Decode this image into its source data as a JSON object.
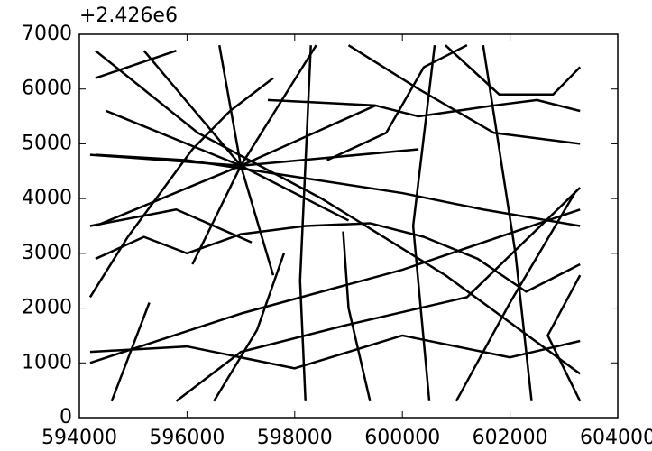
{
  "chart_data": {
    "type": "line",
    "offset_text": "+2.426e6",
    "xlim": [
      594000,
      604000
    ],
    "xticks": [
      594000,
      596000,
      598000,
      600000,
      602000,
      604000
    ],
    "ylim": [
      0,
      7000
    ],
    "yticks": [
      0,
      1000,
      2000,
      3000,
      4000,
      5000,
      6000,
      7000
    ],
    "series": [
      {
        "color": "#000000",
        "x": [
          597000,
          594200
        ],
        "values": [
          4600,
          4800
        ]
      },
      {
        "color": "#000000",
        "x": [
          597000,
          594300
        ],
        "values": [
          4600,
          3500
        ]
      },
      {
        "color": "#000000",
        "x": [
          597000,
          595200
        ],
        "values": [
          4600,
          6700
        ]
      },
      {
        "color": "#000000",
        "x": [
          597000,
          596600
        ],
        "values": [
          4600,
          6800
        ]
      },
      {
        "color": "#000000",
        "x": [
          597000,
          598400
        ],
        "values": [
          4600,
          6800
        ]
      },
      {
        "color": "#000000",
        "x": [
          597000,
          599500
        ],
        "values": [
          4600,
          5700
        ]
      },
      {
        "color": "#000000",
        "x": [
          597000,
          600300
        ],
        "values": [
          4600,
          4900
        ]
      },
      {
        "color": "#000000",
        "x": [
          597000,
          599000
        ],
        "values": [
          4600,
          3600
        ]
      },
      {
        "color": "#000000",
        "x": [
          597000,
          597600
        ],
        "values": [
          4600,
          2600
        ]
      },
      {
        "color": "#000000",
        "x": [
          597000,
          596100
        ],
        "values": [
          4600,
          2800
        ]
      },
      {
        "color": "#000000",
        "x": [
          597000,
          594500
        ],
        "values": [
          4600,
          5600
        ]
      },
      {
        "color": "#000000",
        "x": [
          594200,
          594900,
          595500,
          596100,
          596800,
          597600
        ],
        "values": [
          2200,
          3300,
          4100,
          4900,
          5600,
          6200
        ]
      },
      {
        "color": "#000000",
        "x": [
          594300,
          595200,
          596000,
          597000,
          598200,
          599400,
          600400,
          601400,
          602300,
          603300
        ],
        "values": [
          2900,
          3300,
          3000,
          3350,
          3500,
          3550,
          3300,
          2900,
          2300,
          2800
        ]
      },
      {
        "color": "#000000",
        "x": [
          594300,
          596000,
          598000,
          600000,
          601500,
          603300
        ],
        "values": [
          4800,
          4700,
          4400,
          4100,
          3800,
          3500
        ]
      },
      {
        "color": "#000000",
        "x": [
          597500,
          599500,
          600300,
          601700,
          602500,
          603300
        ],
        "values": [
          5800,
          5700,
          5500,
          5700,
          5800,
          5600
        ]
      },
      {
        "color": "#000000",
        "x": [
          598200,
          598100,
          598300
        ],
        "values": [
          300,
          2500,
          6800
        ]
      },
      {
        "color": "#000000",
        "x": [
          600500,
          600200,
          600600
        ],
        "values": [
          300,
          3500,
          6800
        ]
      },
      {
        "color": "#000000",
        "x": [
          602400,
          602100,
          601500
        ],
        "values": [
          300,
          3000,
          6800
        ]
      },
      {
        "color": "#000000",
        "x": [
          594300,
          596200,
          598500,
          600800,
          603300
        ],
        "values": [
          6700,
          5200,
          4000,
          2600,
          800
        ]
      },
      {
        "color": "#000000",
        "x": [
          594200,
          597000,
          600000,
          603300
        ],
        "values": [
          1000,
          1900,
          2700,
          3800
        ]
      },
      {
        "color": "#000000",
        "x": [
          594200,
          596000,
          598000,
          600000,
          602000,
          603300
        ],
        "values": [
          1200,
          1300,
          900,
          1500,
          1100,
          1400
        ]
      },
      {
        "color": "#000000",
        "x": [
          595800,
          597000,
          599000,
          601200,
          603300
        ],
        "values": [
          300,
          1200,
          1700,
          2200,
          4200
        ]
      },
      {
        "color": "#000000",
        "x": [
          601000,
          602000,
          603200
        ],
        "values": [
          300,
          2100,
          4100
        ]
      },
      {
        "color": "#000000",
        "x": [
          599000,
          600300,
          601700,
          603300
        ],
        "values": [
          6800,
          6000,
          5200,
          5000
        ]
      },
      {
        "color": "#000000",
        "x": [
          594600,
          595300
        ],
        "values": [
          300,
          2100
        ]
      },
      {
        "color": "#000000",
        "x": [
          603300,
          602700,
          603300
        ],
        "values": [
          300,
          1500,
          2600
        ]
      },
      {
        "color": "#000000",
        "x": [
          596500,
          597300,
          597800
        ],
        "values": [
          300,
          1600,
          3000
        ]
      },
      {
        "color": "#000000",
        "x": [
          599400,
          599000,
          598900
        ],
        "values": [
          300,
          2000,
          3400
        ]
      },
      {
        "color": "#000000",
        "x": [
          594200,
          595800,
          597200
        ],
        "values": [
          3500,
          3800,
          3200
        ]
      },
      {
        "color": "#000000",
        "x": [
          598600,
          599700,
          600400,
          601200
        ],
        "values": [
          4700,
          5200,
          6400,
          6800
        ]
      },
      {
        "color": "#000000",
        "x": [
          600800,
          601800,
          602800,
          603300
        ],
        "values": [
          6800,
          5900,
          5900,
          6400
        ]
      },
      {
        "color": "#000000",
        "x": [
          594300,
          595800
        ],
        "values": [
          6200,
          6700
        ]
      }
    ]
  }
}
